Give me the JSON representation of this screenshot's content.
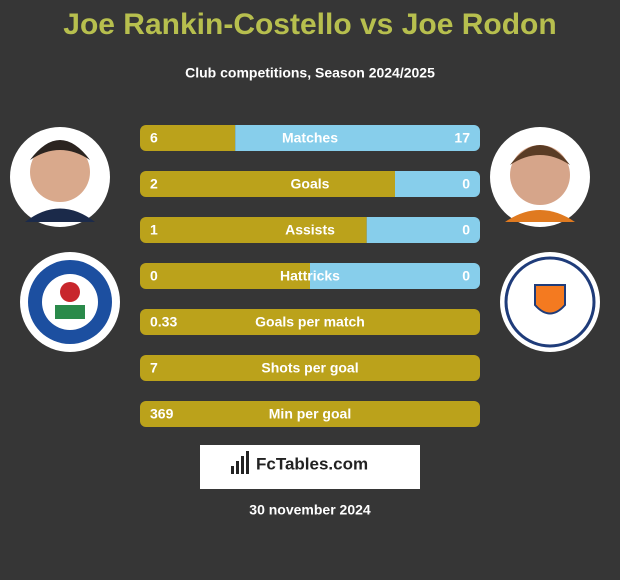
{
  "title": "Joe Rankin-Costello vs Joe Rodon",
  "subtitle": "Club competitions, Season 2024/2025",
  "rows": [
    {
      "label": "Matches",
      "left": 6,
      "right": 17
    },
    {
      "label": "Goals",
      "left": 2,
      "right": 0
    },
    {
      "label": "Assists",
      "left": 1,
      "right": 0
    },
    {
      "label": "Hattricks",
      "left": 0,
      "right": 0
    },
    {
      "label": "Goals per match",
      "left": 0.33
    },
    {
      "label": "Shots per goal",
      "left": 7
    },
    {
      "label": "Min per goal",
      "left": 369
    }
  ],
  "brand": "FcTables.com",
  "date": "30 november 2024"
}
